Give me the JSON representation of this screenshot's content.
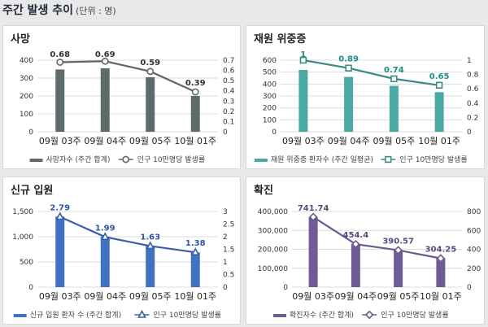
{
  "header": {
    "title": "주간 발생 추이",
    "unit": "(단위 : 명)"
  },
  "chart_data": [
    {
      "type": "bar",
      "title": "사망",
      "categories": [
        "09월 03주",
        "09월 04주",
        "09월 05주",
        "10월 01주"
      ],
      "left_ticks": [
        "400",
        "300",
        "200",
        "100",
        "0"
      ],
      "left_ylim": [
        0,
        400
      ],
      "right_ticks": [
        "0.7",
        "0.6",
        "0.5",
        "0.4",
        "0.3",
        "0.2",
        "0.1",
        "0"
      ],
      "right_ylim": [
        0,
        0.7
      ],
      "series": [
        {
          "name": "사망자수 (주간 합계)",
          "kind": "bar",
          "axis": "left",
          "values": [
            348,
            355,
            305,
            200
          ]
        },
        {
          "name": "인구 10만명당 발생률",
          "kind": "line",
          "axis": "right",
          "marker": "circle",
          "values": [
            0.68,
            0.69,
            0.59,
            0.39
          ]
        }
      ],
      "data_labels": [
        "0.68",
        "0.69",
        "0.59",
        "0.39"
      ],
      "colors": {
        "bar": "#5f6b6b",
        "line": "#666666",
        "label": "#333333"
      }
    },
    {
      "type": "bar",
      "title": "재원 위중증",
      "categories": [
        "09월 03주",
        "09월 04주",
        "09월 05주",
        "10월 01주"
      ],
      "left_ticks": [
        "600",
        "500",
        "400",
        "300",
        "200",
        "100",
        "0"
      ],
      "left_ylim": [
        0,
        600
      ],
      "right_ticks": [
        "1",
        "0.8",
        "0.6",
        "0.4",
        "0.2",
        "0"
      ],
      "right_ylim": [
        0,
        1
      ],
      "series": [
        {
          "name": "재원 위중증 환자수 (주간 일평균)",
          "kind": "bar",
          "axis": "left",
          "values": [
            518,
            460,
            385,
            332
          ]
        },
        {
          "name": "인구 10만명당 발생률",
          "kind": "line",
          "axis": "right",
          "marker": "square",
          "values": [
            1,
            0.89,
            0.74,
            0.65
          ]
        }
      ],
      "data_labels": [
        "1",
        "0.89",
        "0.74",
        "0.65"
      ],
      "colors": {
        "bar": "#4aa9a4",
        "line": "#3a8a86",
        "label": "#1d8c87"
      }
    },
    {
      "type": "bar",
      "title": "신규 입원",
      "categories": [
        "09월 03주",
        "09월 04주",
        "09월 05주",
        "10월 01주"
      ],
      "left_ticks": [
        "1,500",
        "1,000",
        "500",
        "0"
      ],
      "left_ylim": [
        0,
        1500
      ],
      "right_ticks": [
        "3",
        "2.5",
        "2",
        "1.5",
        "1",
        "0.5",
        "0"
      ],
      "right_ylim": [
        0,
        3
      ],
      "series": [
        {
          "name": "신규 입원 환자 수 (주간 합계)",
          "kind": "bar",
          "axis": "left",
          "values": [
            1400,
            998,
            818,
            690
          ]
        },
        {
          "name": "인구 10만명당 발생률",
          "kind": "line",
          "axis": "right",
          "marker": "triangle",
          "values": [
            2.79,
            1.99,
            1.63,
            1.38
          ]
        }
      ],
      "data_labels": [
        "2.79",
        "1.99",
        "1.63",
        "1.38"
      ],
      "colors": {
        "bar": "#3f73c2",
        "line": "#3a5fa8",
        "label": "#2f55a4"
      }
    },
    {
      "type": "bar",
      "title": "확진",
      "categories": [
        "09월 03주",
        "09월 04주",
        "09월 05주",
        "10월 01주"
      ],
      "left_ticks": [
        "400,000",
        "300,000",
        "200,000",
        "100,000",
        "0"
      ],
      "left_ylim": [
        0,
        400000
      ],
      "right_ticks": [
        "800",
        "600",
        "400",
        "200",
        "0"
      ],
      "right_ylim": [
        0,
        800
      ],
      "series": [
        {
          "name": "확진자수 (주간 합계)",
          "kind": "bar",
          "axis": "left",
          "values": [
            370000,
            228000,
            196000,
            153000
          ]
        },
        {
          "name": "인구 10만명당 발생률",
          "kind": "line",
          "axis": "right",
          "marker": "diamond",
          "values": [
            741.74,
            454.4,
            390.57,
            304.25
          ]
        }
      ],
      "data_labels": [
        "741.74",
        "454.4",
        "390.57",
        "304.25"
      ],
      "colors": {
        "bar": "#6f5c96",
        "line": "#6b5a8e",
        "label": "#5a4a7e"
      }
    }
  ]
}
